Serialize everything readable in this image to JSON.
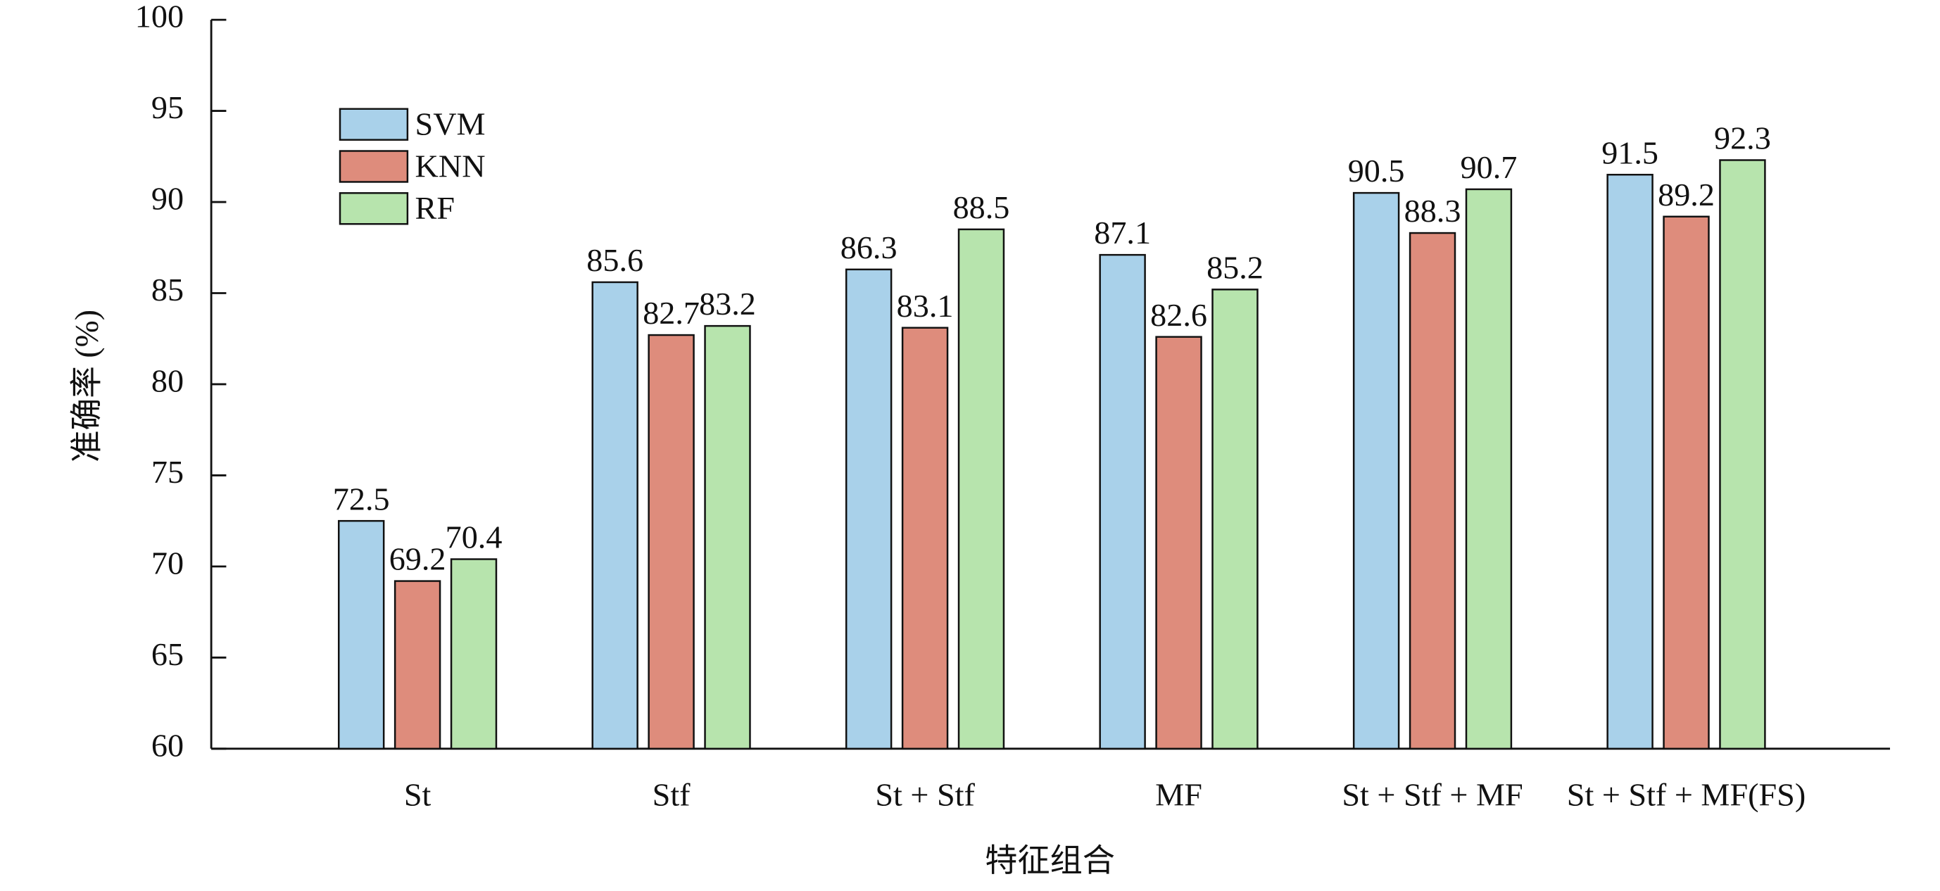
{
  "chart_data": {
    "type": "bar",
    "x_label": "特征组合",
    "y_label": "准确率 (%)",
    "categories": [
      "St",
      "Stf",
      "St + Stf",
      "MF",
      "St + Stf + MF",
      "St + Stf + MF(FS)"
    ],
    "series": [
      {
        "name": "SVM",
        "color": "#a9d1ea",
        "values": [
          72.5,
          85.6,
          86.3,
          87.1,
          90.5,
          91.5
        ]
      },
      {
        "name": "KNN",
        "color": "#de8c7c",
        "values": [
          69.2,
          82.7,
          83.1,
          82.6,
          88.3,
          89.2
        ]
      },
      {
        "name": "RF",
        "color": "#b7e4ad",
        "values": [
          70.4,
          83.2,
          88.5,
          85.2,
          90.7,
          92.3
        ]
      }
    ],
    "ylim": [
      60,
      100
    ],
    "yticks": [
      60,
      65,
      70,
      75,
      80,
      85,
      90,
      95,
      100
    ],
    "legend": "upper-left",
    "grid": false
  }
}
